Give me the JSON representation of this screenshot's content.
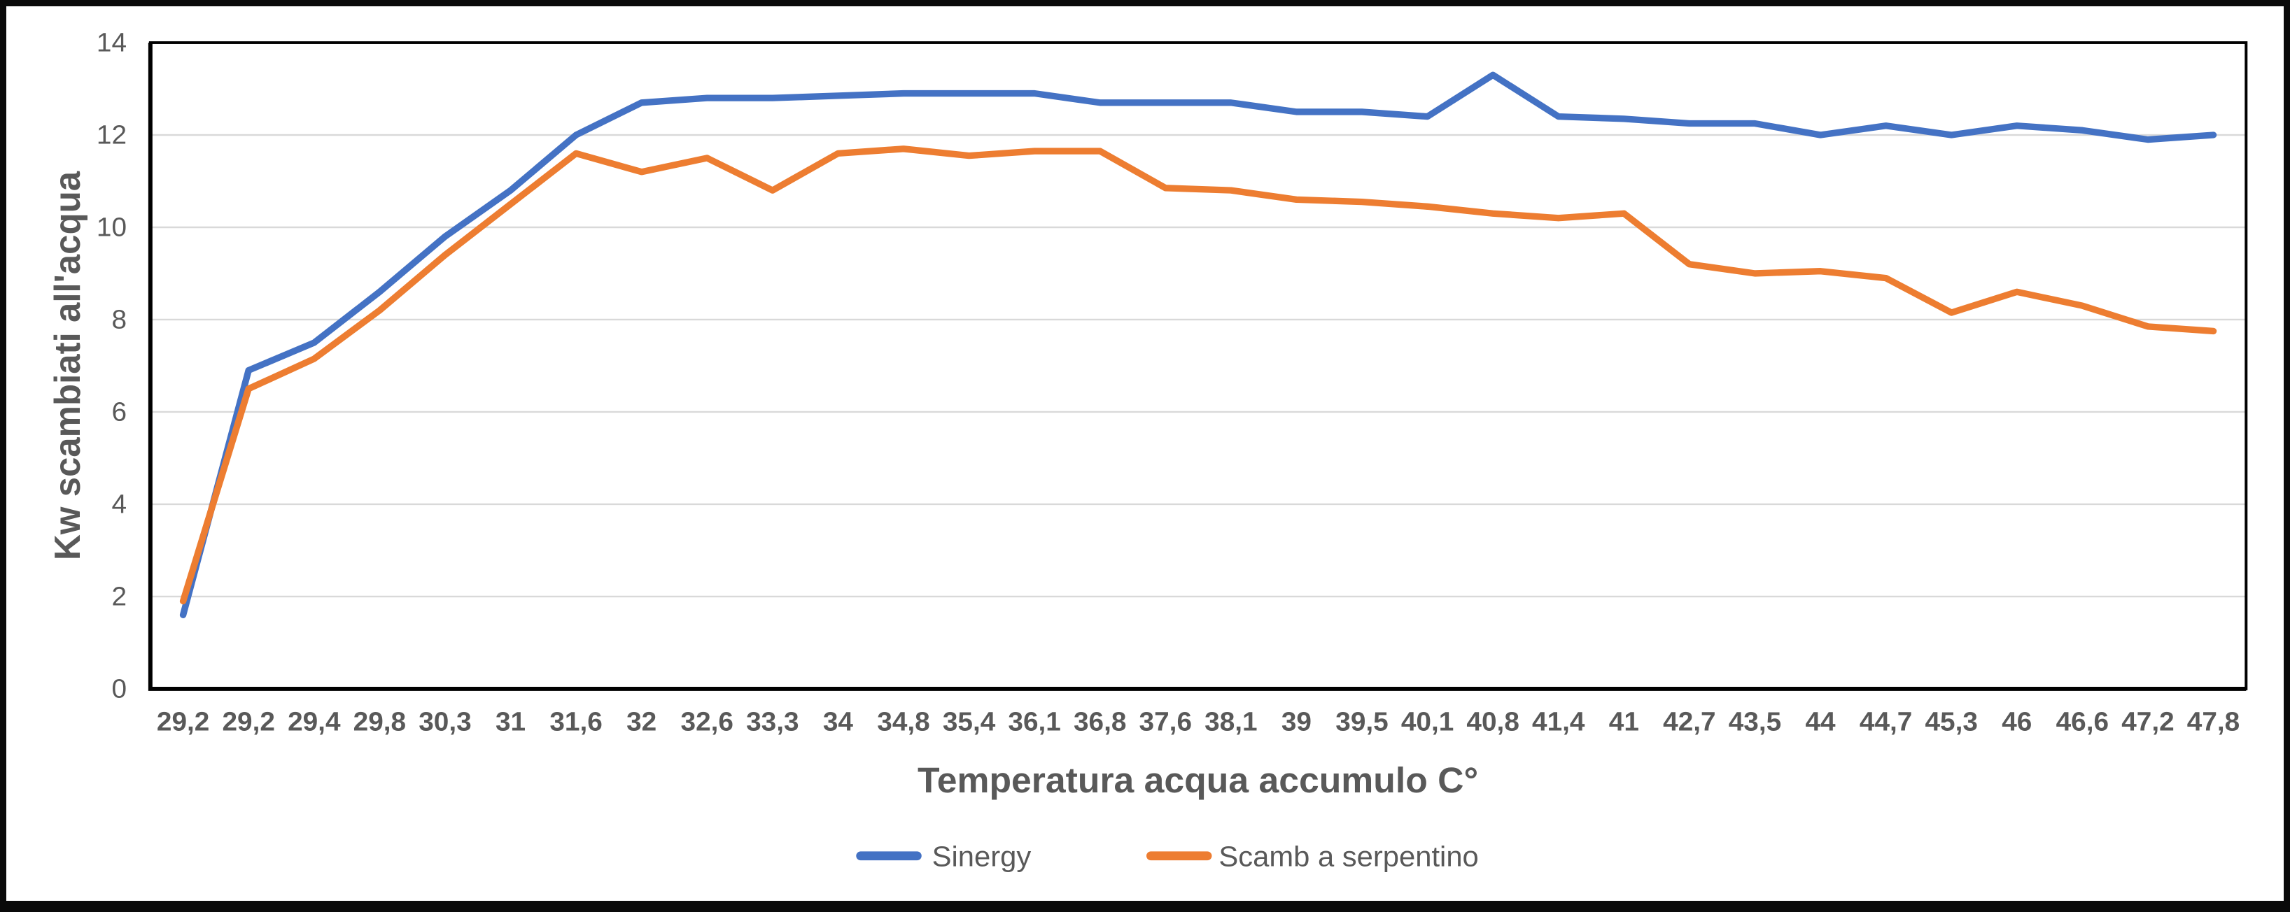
{
  "chart_data": {
    "type": "line",
    "title": "",
    "xlabel": "Temperatura acqua accumulo C°",
    "ylabel": "Kw scambiati all'acqua",
    "ylim": [
      0,
      14
    ],
    "ytick_interval": 2,
    "yticks": [
      "0",
      "2",
      "4",
      "6",
      "8",
      "10",
      "12",
      "14"
    ],
    "grid": true,
    "legend_position": "bottom",
    "categories": [
      "29,2",
      "29,2",
      "29,4",
      "29,8",
      "30,3",
      "31",
      "31,6",
      "32",
      "32,6",
      "33,3",
      "34",
      "34,8",
      "35,4",
      "36,1",
      "36,8",
      "37,6",
      "38,1",
      "39",
      "39,5",
      "40,1",
      "40,8",
      "41,4",
      "41",
      "42,7",
      "43,5",
      "44",
      "44,7",
      "45,3",
      "46",
      "46,6",
      "47,2",
      "47,8"
    ],
    "series": [
      {
        "name": "Sinergy",
        "color": "#4472C4",
        "values": [
          1.6,
          6.9,
          7.5,
          8.6,
          9.8,
          10.8,
          12.0,
          12.7,
          12.8,
          12.8,
          12.85,
          12.9,
          12.9,
          12.9,
          12.7,
          12.7,
          12.7,
          12.5,
          12.5,
          12.4,
          13.3,
          12.4,
          12.35,
          12.25,
          12.25,
          12.0,
          12.2,
          12.0,
          12.2,
          12.1,
          11.9,
          12.0
        ]
      },
      {
        "name": "Scamb a serpentino",
        "color": "#ED7D31",
        "values": [
          1.9,
          6.5,
          7.15,
          8.2,
          9.4,
          10.5,
          11.6,
          11.2,
          11.5,
          10.8,
          11.6,
          11.7,
          11.55,
          11.65,
          11.65,
          10.85,
          10.8,
          10.6,
          10.55,
          10.45,
          10.3,
          10.2,
          10.3,
          9.2,
          9.0,
          9.05,
          8.9,
          8.15,
          8.6,
          8.3,
          7.85,
          7.75
        ]
      }
    ],
    "colors": {
      "axis_text": "#595959",
      "gridline": "#D9D9D9",
      "plot_border": "#000000"
    }
  }
}
